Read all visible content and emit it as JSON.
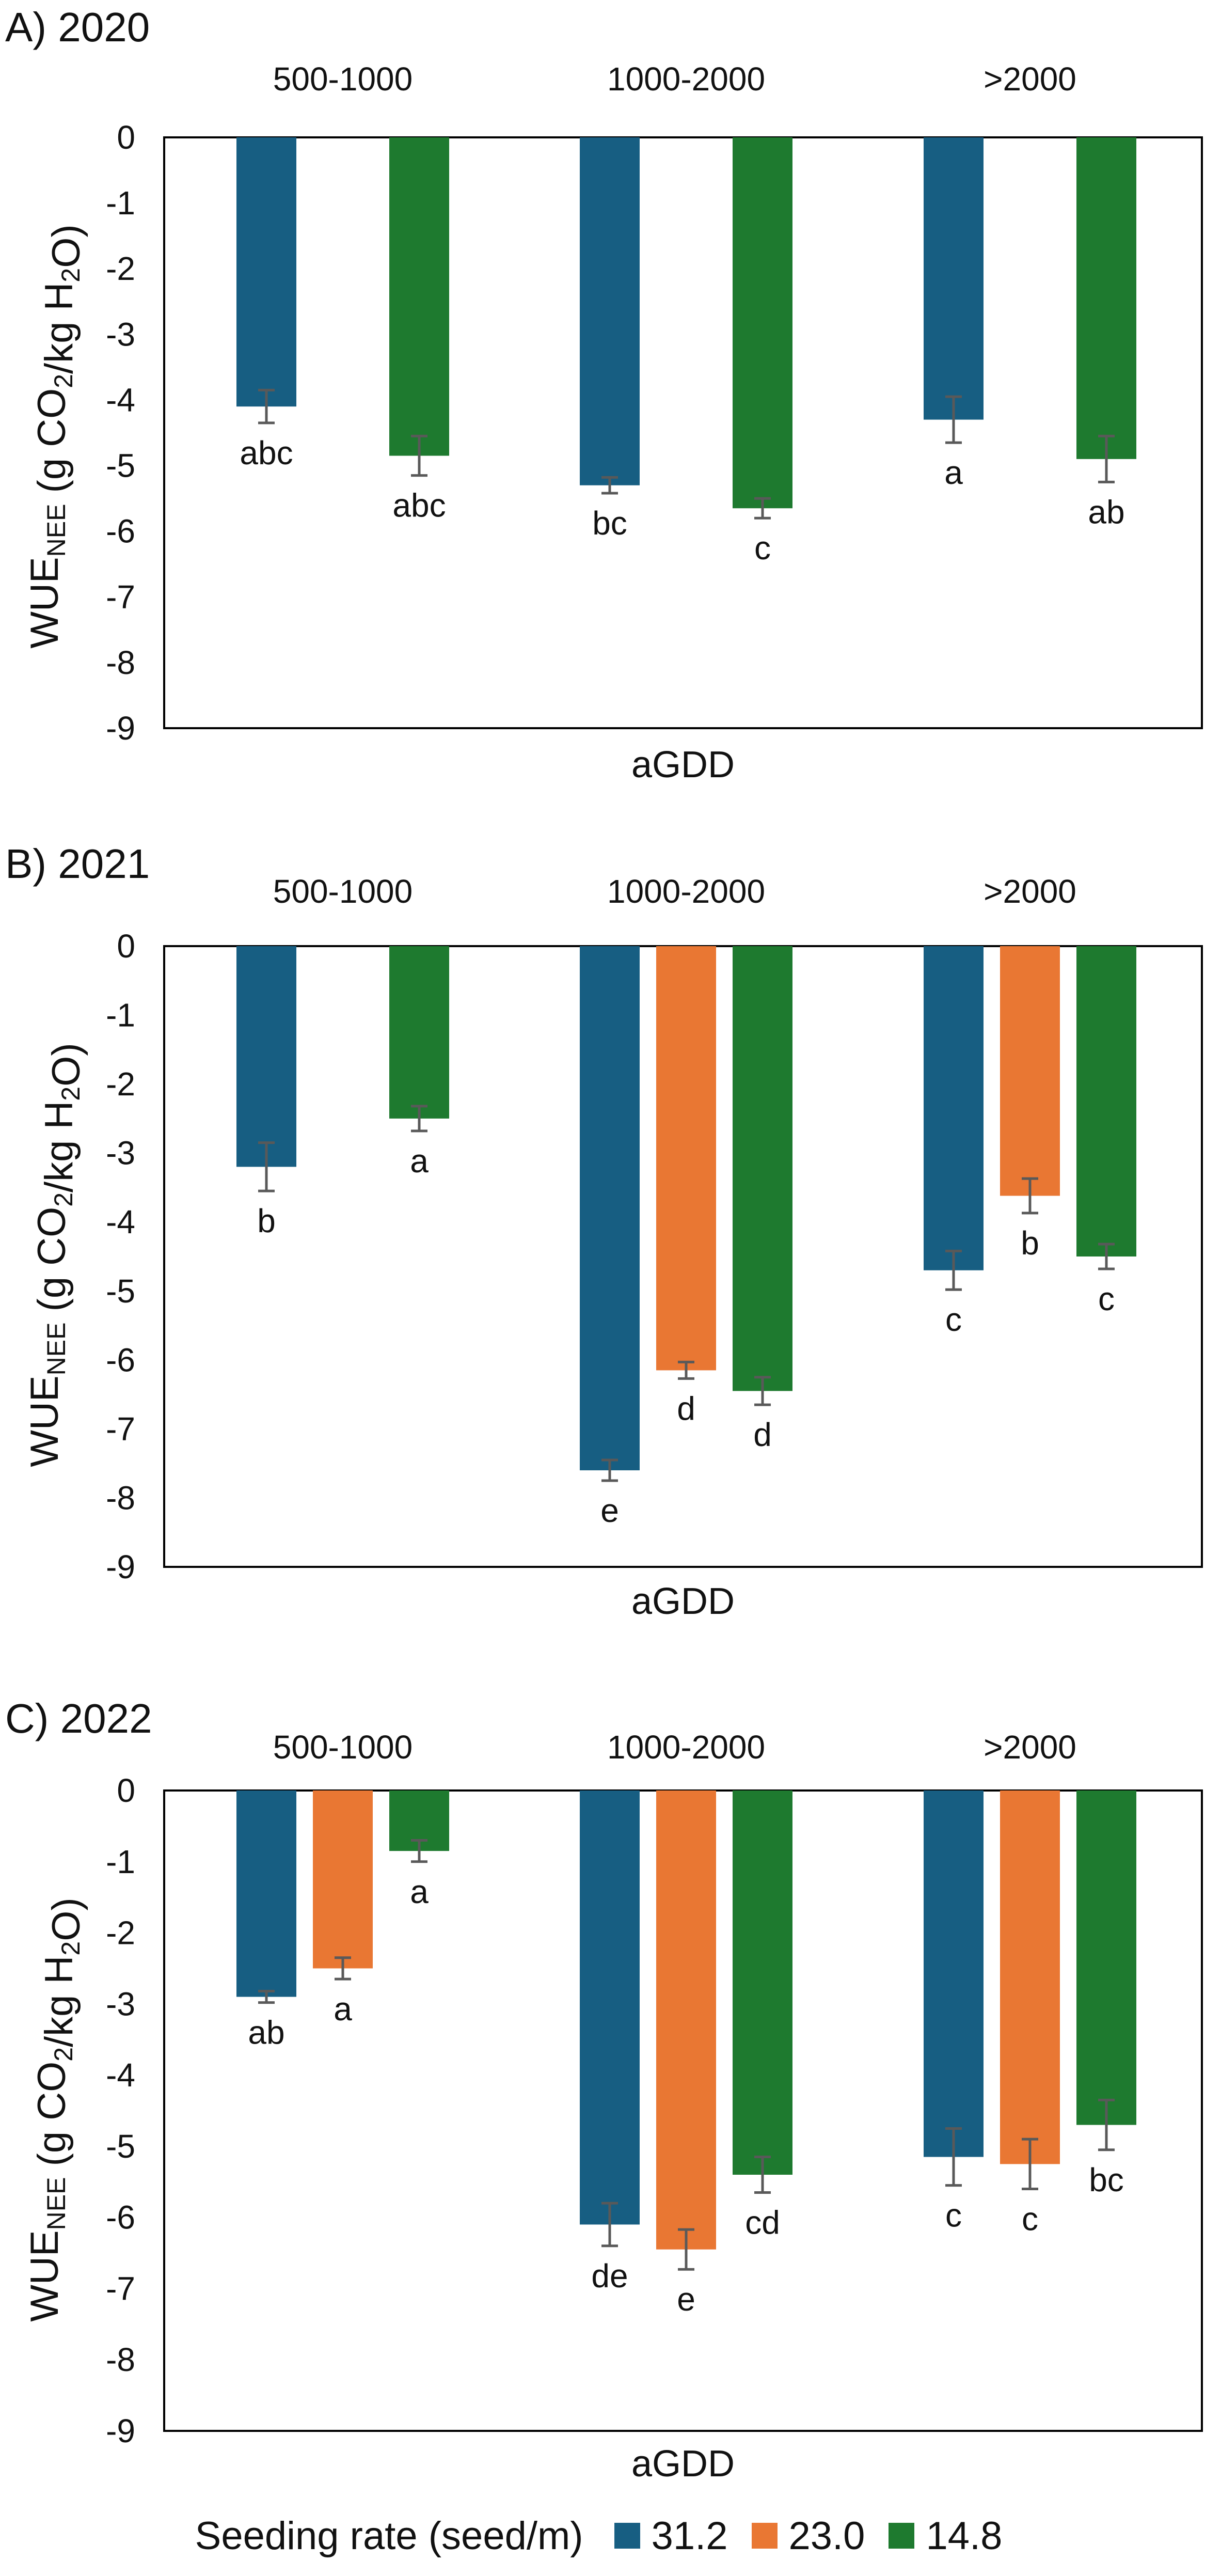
{
  "chart_data": [
    {
      "type": "bar",
      "title": "A) 2020",
      "xlabel": "aGDD",
      "ylabel_main": "WUE",
      "ylabel_sub": "NEE",
      "ylabel_rest": " (g CO",
      "ylabel_sub2": "2",
      "ylabel_rest2": "/kg H",
      "ylabel_sub3": "2",
      "ylabel_rest3": "O)",
      "ylim": [
        -9,
        0
      ],
      "yticks": [
        "0",
        "-1",
        "-2",
        "-3",
        "-4",
        "-5",
        "-6",
        "-7",
        "-8",
        "-9"
      ],
      "categories": [
        "500-1000",
        "1000-2000",
        ">2000"
      ],
      "series": [
        {
          "name": "31.2",
          "values": [
            -4.1,
            -5.3,
            -4.3
          ],
          "errors": [
            0.25,
            0.12,
            0.35
          ],
          "labels": [
            "abc",
            "bc",
            "a"
          ]
        },
        {
          "name": "23.0",
          "values": [
            null,
            null,
            null
          ],
          "errors": [
            null,
            null,
            null
          ],
          "labels": [
            "",
            "",
            ""
          ]
        },
        {
          "name": "14.8",
          "values": [
            -4.85,
            -5.65,
            -4.9
          ],
          "errors": [
            0.3,
            0.15,
            0.35
          ],
          "labels": [
            "abc",
            "c",
            "ab"
          ]
        }
      ]
    },
    {
      "type": "bar",
      "title": "B) 2021",
      "xlabel": "aGDD",
      "ylabel_main": "WUE",
      "ylabel_sub": "NEE",
      "ylabel_rest": " (g CO",
      "ylabel_sub2": "2",
      "ylabel_rest2": "/kg H",
      "ylabel_sub3": "2",
      "ylabel_rest3": "O)",
      "ylim": [
        -9,
        0
      ],
      "yticks": [
        "0",
        "-1",
        "-2",
        "-3",
        "-4",
        "-5",
        "-6",
        "-7",
        "-8",
        "-9"
      ],
      "categories": [
        "500-1000",
        "1000-2000",
        ">2000"
      ],
      "series": [
        {
          "name": "31.2",
          "values": [
            -3.2,
            -7.6,
            -4.7
          ],
          "errors": [
            0.35,
            0.15,
            0.28
          ],
          "labels": [
            "b",
            "e",
            "c"
          ]
        },
        {
          "name": "23.0",
          "values": [
            null,
            -6.15,
            -3.62
          ],
          "errors": [
            null,
            0.12,
            0.25
          ],
          "labels": [
            "",
            "d",
            "b"
          ]
        },
        {
          "name": "14.8",
          "values": [
            -2.5,
            -6.45,
            -4.5
          ],
          "errors": [
            0.18,
            0.2,
            0.18
          ],
          "labels": [
            "a",
            "d",
            "c"
          ]
        }
      ]
    },
    {
      "type": "bar",
      "title": "C) 2022",
      "xlabel": "aGDD",
      "ylabel_main": "WUE",
      "ylabel_sub": "NEE",
      "ylabel_rest": " (g CO",
      "ylabel_sub2": "2",
      "ylabel_rest2": "/kg H",
      "ylabel_sub3": "2",
      "ylabel_rest3": "O)",
      "ylim": [
        -9,
        0
      ],
      "yticks": [
        "0",
        "-1",
        "-2",
        "-3",
        "-4",
        "-5",
        "-6",
        "-7",
        "-8",
        "-9"
      ],
      "categories": [
        "500-1000",
        "1000-2000",
        ">2000"
      ],
      "series": [
        {
          "name": "31.2",
          "values": [
            -2.9,
            -6.1,
            -5.15
          ],
          "errors": [
            0.08,
            0.3,
            0.4
          ],
          "labels": [
            "ab",
            "de",
            "c"
          ]
        },
        {
          "name": "23.0",
          "values": [
            -2.5,
            -6.45,
            -5.25
          ],
          "errors": [
            0.15,
            0.28,
            0.35
          ],
          "labels": [
            "a",
            "e",
            "c"
          ]
        },
        {
          "name": "14.8",
          "values": [
            -0.85,
            -5.4,
            -4.7
          ],
          "errors": [
            0.15,
            0.25,
            0.35
          ],
          "labels": [
            "a",
            "cd",
            "bc"
          ]
        }
      ]
    }
  ],
  "legend": {
    "title": "Seeding rate (seed/m)",
    "items": [
      {
        "label": "31.2",
        "color": "#175e82"
      },
      {
        "label": "23.0",
        "color": "#e97733"
      },
      {
        "label": "14.8",
        "color": "#1e7a2f"
      }
    ]
  },
  "colors": {
    "series": [
      "#175e82",
      "#e97733",
      "#1e7a2f"
    ],
    "errorbar": "#595959",
    "axis": "#000000"
  }
}
